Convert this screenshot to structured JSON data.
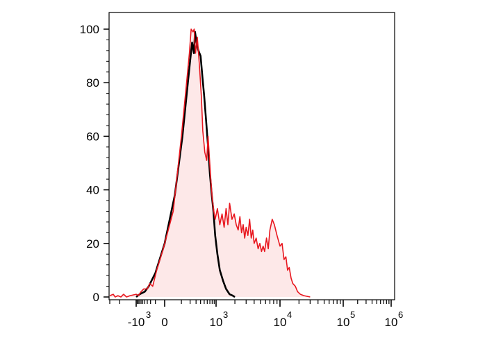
{
  "chart_data": {
    "type": "area",
    "title": "",
    "xlabel": "",
    "ylabel": "",
    "x_scale": "biexponential",
    "xlim": [
      -3000,
      1000000
    ],
    "ylim": [
      0,
      100
    ],
    "grid": false,
    "legend": "none",
    "y_ticks": [
      {
        "value": 0,
        "label": "0"
      },
      {
        "value": 20,
        "label": "20"
      },
      {
        "value": 40,
        "label": "40"
      },
      {
        "value": 60,
        "label": "60"
      },
      {
        "value": 80,
        "label": "80"
      },
      {
        "value": 100,
        "label": "100"
      }
    ],
    "x_ticks": [
      {
        "value": -1000,
        "base": "-10",
        "exp": "3"
      },
      {
        "value": 0,
        "base": "0",
        "exp": ""
      },
      {
        "value": 1000,
        "base": "10",
        "exp": "3"
      },
      {
        "value": 10000,
        "base": "10",
        "exp": "4"
      },
      {
        "value": 100000,
        "base": "10",
        "exp": "5"
      },
      {
        "value": 1000000,
        "base": "10",
        "exp": "6"
      }
    ],
    "series": [
      {
        "color": "#000000",
        "fill": "none",
        "points": [
          [
            -1000,
            0
          ],
          [
            -700,
            1
          ],
          [
            -400,
            2
          ],
          [
            -250,
            4
          ],
          [
            -100,
            9
          ],
          [
            0,
            20
          ],
          [
            50,
            38
          ],
          [
            110,
            60
          ],
          [
            170,
            80
          ],
          [
            200,
            88
          ],
          [
            230,
            95
          ],
          [
            260,
            91
          ],
          [
            280,
            99
          ],
          [
            310,
            95
          ],
          [
            350,
            92
          ],
          [
            400,
            90
          ],
          [
            450,
            82
          ],
          [
            500,
            75
          ],
          [
            560,
            66
          ],
          [
            630,
            56
          ],
          [
            700,
            46
          ],
          [
            780,
            38
          ],
          [
            860,
            32
          ],
          [
            950,
            23
          ],
          [
            1050,
            16
          ],
          [
            1150,
            10
          ],
          [
            1300,
            6
          ],
          [
            1450,
            3
          ],
          [
            1650,
            1
          ],
          [
            1850,
            0.5
          ],
          [
            2000,
            0
          ]
        ]
      },
      {
        "color": "#e8171f",
        "fill": "#fde8e8",
        "points": [
          [
            -3000,
            0.5
          ],
          [
            -2600,
            1
          ],
          [
            -2400,
            0
          ],
          [
            -2150,
            0.5
          ],
          [
            -1900,
            0
          ],
          [
            -1700,
            1
          ],
          [
            -1500,
            0
          ],
          [
            -1300,
            0.5
          ],
          [
            -1000,
            1
          ],
          [
            -800,
            0.5
          ],
          [
            -600,
            2
          ],
          [
            -450,
            3
          ],
          [
            -300,
            3
          ],
          [
            -220,
            5
          ],
          [
            -150,
            4
          ],
          [
            -80,
            10
          ],
          [
            -10,
            18
          ],
          [
            40,
            32
          ],
          [
            100,
            60
          ],
          [
            160,
            82
          ],
          [
            190,
            91
          ],
          [
            215,
            100
          ],
          [
            245,
            99
          ],
          [
            265,
            100
          ],
          [
            290,
            91
          ],
          [
            325,
            97
          ],
          [
            370,
            87
          ],
          [
            420,
            75
          ],
          [
            460,
            62
          ],
          [
            520,
            54
          ],
          [
            580,
            51
          ],
          [
            630,
            60
          ],
          [
            680,
            52
          ],
          [
            740,
            44
          ],
          [
            800,
            37
          ],
          [
            880,
            32
          ],
          [
            950,
            29
          ],
          [
            1050,
            33
          ],
          [
            1150,
            27
          ],
          [
            1250,
            31
          ],
          [
            1350,
            26
          ],
          [
            1450,
            33
          ],
          [
            1550,
            27
          ],
          [
            1650,
            35
          ],
          [
            1800,
            29
          ],
          [
            1950,
            31
          ],
          [
            2100,
            27
          ],
          [
            2250,
            25
          ],
          [
            2400,
            30
          ],
          [
            2550,
            24
          ],
          [
            2700,
            27
          ],
          [
            2850,
            22
          ],
          [
            3000,
            26
          ],
          [
            3200,
            23
          ],
          [
            3400,
            29
          ],
          [
            3600,
            22
          ],
          [
            3800,
            25
          ],
          [
            4000,
            20
          ],
          [
            4300,
            22
          ],
          [
            4600,
            18
          ],
          [
            4900,
            20
          ],
          [
            5200,
            17
          ],
          [
            5500,
            19
          ],
          [
            5800,
            17
          ],
          [
            6200,
            22
          ],
          [
            6600,
            18
          ],
          [
            7000,
            25
          ],
          [
            7600,
            29
          ],
          [
            8200,
            27
          ],
          [
            9000,
            23
          ],
          [
            10000,
            19
          ],
          [
            10800,
            20
          ],
          [
            11600,
            14
          ],
          [
            12400,
            15
          ],
          [
            13200,
            10
          ],
          [
            14000,
            11
          ],
          [
            15000,
            7
          ],
          [
            16000,
            5
          ],
          [
            17500,
            4
          ],
          [
            19000,
            2
          ],
          [
            21000,
            1
          ],
          [
            24000,
            0.5
          ],
          [
            30000,
            0
          ]
        ]
      }
    ]
  }
}
